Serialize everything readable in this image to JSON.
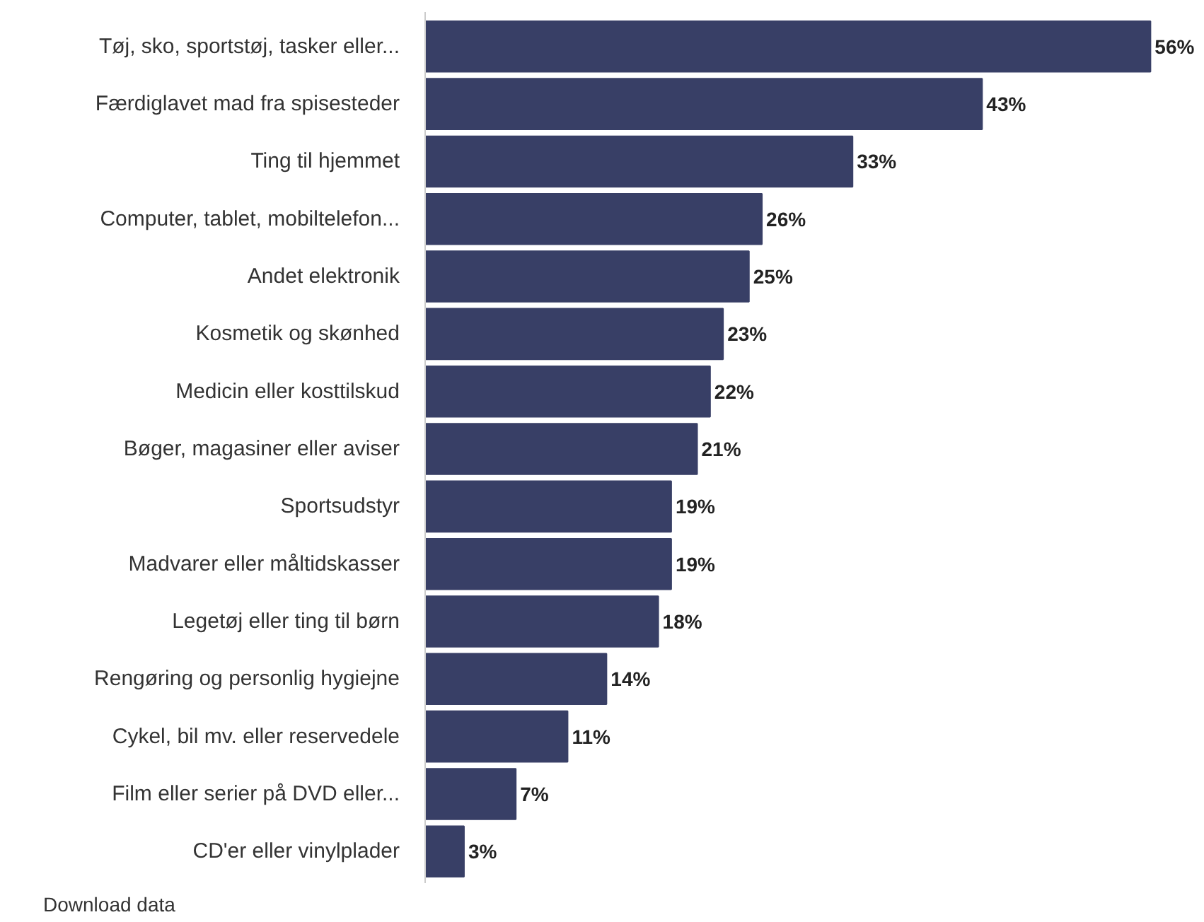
{
  "chart_data": {
    "type": "bar",
    "orientation": "horizontal",
    "categories": [
      "Tøj, sko, sportstøj, tasker eller...",
      "Færdiglavet mad fra spisesteder",
      "Ting til hjemmet",
      "Computer, tablet, mobiltelefon...",
      "Andet elektronik",
      "Kosmetik og skønhed",
      "Medicin eller kosttilskud",
      "Bøger, magasiner eller aviser",
      "Sportsudstyr",
      "Madvarer eller måltidskasser",
      "Legetøj eller ting til børn",
      "Rengøring og personlig hygiejne",
      "Cykel, bil mv. eller reservedele",
      "Film eller serier på DVD eller...",
      "CD'er eller vinylplader"
    ],
    "values": [
      56,
      43,
      33,
      26,
      25,
      23,
      22,
      21,
      19,
      19,
      18,
      14,
      11,
      7,
      3
    ],
    "value_labels": [
      "56%",
      "43%",
      "33%",
      "26%",
      "25%",
      "23%",
      "22%",
      "21%",
      "19%",
      "19%",
      "18%",
      "14%",
      "11%",
      "7%",
      "3%"
    ],
    "color": "#383f66",
    "grid": false,
    "annotations": [
      "Download data"
    ]
  }
}
